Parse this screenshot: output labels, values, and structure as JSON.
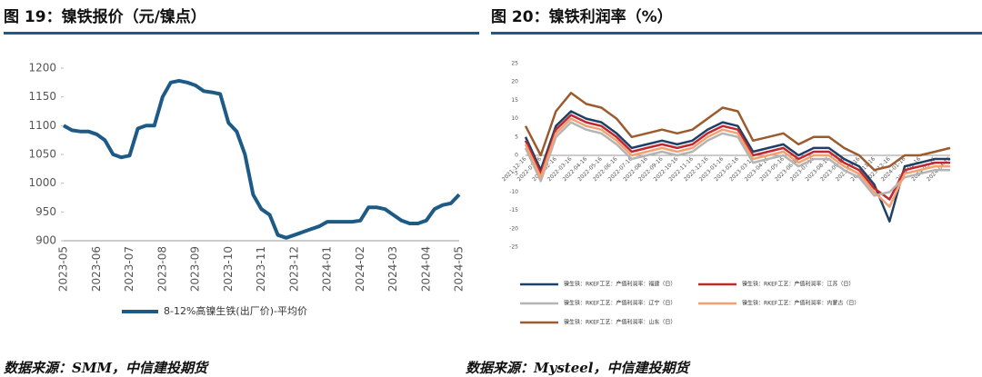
{
  "figures": [
    {
      "title": "图 19：镍铁报价（元/镍点）",
      "source": "数据来源：SMM，中信建投期货"
    },
    {
      "title": "图 20：镍铁利润率（%）",
      "source": "数据来源：Mysteel，中信建投期货"
    }
  ],
  "chart_data": [
    {
      "type": "line",
      "categories": [
        "2023-05",
        null,
        null,
        null,
        "2023-06",
        null,
        null,
        null,
        "2023-07",
        null,
        null,
        null,
        "2023-08",
        null,
        null,
        null,
        "2023-09",
        null,
        null,
        null,
        "2023-10",
        null,
        null,
        null,
        "2023-11",
        null,
        null,
        null,
        "2023-12",
        null,
        null,
        null,
        "2024-01",
        null,
        null,
        null,
        "2024-02",
        null,
        null,
        null,
        "2024-03",
        null,
        null,
        null,
        "2024-04",
        null,
        null,
        null,
        "2024-05"
      ],
      "series": [
        {
          "name": "8-12%高镍生铁(出厂价)-平均价",
          "color": "#1d5b86",
          "values": [
            1100,
            1092,
            1090,
            1090,
            1085,
            1075,
            1050,
            1045,
            1048,
            1095,
            1100,
            1100,
            1150,
            1175,
            1178,
            1175,
            1170,
            1160,
            1158,
            1155,
            1105,
            1090,
            1050,
            980,
            955,
            945,
            910,
            905,
            910,
            915,
            920,
            925,
            933,
            933,
            933,
            933,
            935,
            958,
            958,
            955,
            945,
            935,
            930,
            930,
            935,
            955,
            962,
            965,
            980
          ]
        }
      ],
      "ylim": [
        900,
        1200
      ],
      "yticks": [
        900,
        950,
        1000,
        1050,
        1100,
        1150,
        1200
      ],
      "legend": "bottom"
    },
    {
      "type": "line",
      "categories": [
        "2021-12-16",
        "2022-01-16",
        "2022-02-16",
        "2022-03-16",
        "2022-04-16",
        "2022-05-16",
        "2022-06-16",
        "2022-07-16",
        "2022-08-16",
        "2022-09-16",
        "2022-10-16",
        "2022-11-16",
        "2022-12-16",
        "2023-01-16",
        "2023-02-16",
        "2023-03-16",
        "2023-04-16",
        "2023-05-16",
        "2023-06-16",
        "2023-07-16",
        "2023-08-16",
        "2023-09-16",
        "2023-10-16",
        "2023-11-16",
        "2023-12-16",
        "2024-01-16",
        "2024-02-16",
        "2024-03-16",
        "2024-04-16"
      ],
      "series": [
        {
          "name": "镍生铁：RKEF工艺：产值利润率：福建（日）",
          "color": "#1f3f66",
          "values": [
            5,
            -4,
            8,
            12,
            10,
            9,
            6,
            2,
            3,
            4,
            3,
            4,
            7,
            9,
            8,
            1,
            2,
            3,
            0,
            2,
            2,
            -1,
            -3,
            -8,
            -18,
            -3,
            -2,
            -1,
            -1
          ]
        },
        {
          "name": "镍生铁：RKEF工艺：产值利润率：江苏（日）",
          "color": "#c0282f",
          "values": [
            4,
            -5,
            7,
            11,
            9,
            8,
            5,
            1,
            2,
            3,
            2,
            3,
            6,
            8,
            7,
            0,
            1,
            2,
            -1,
            1,
            1,
            -2,
            -4,
            -9,
            -12,
            -4,
            -3,
            -2,
            -2
          ]
        },
        {
          "name": "镍生铁：RKEF工艺：产值利润率：辽宁（日）",
          "color": "#b4b4b4",
          "values": [
            2,
            -7,
            5,
            9,
            7,
            6,
            3,
            -1,
            0,
            1,
            0,
            1,
            4,
            6,
            5,
            -2,
            -1,
            0,
            -3,
            -1,
            -1,
            -4,
            -6,
            -11,
            -10,
            -6,
            -5,
            -4,
            -4
          ]
        },
        {
          "name": "镍生铁：RKEF工艺：产值利润率：内蒙古（日）",
          "color": "#f4a070",
          "values": [
            3,
            -6,
            6,
            10,
            8,
            7,
            4,
            0,
            1,
            2,
            1,
            2,
            5,
            7,
            6,
            -1,
            0,
            1,
            -2,
            0,
            0,
            -3,
            -5,
            -10,
            -14,
            -5,
            -4,
            -3,
            -3
          ]
        },
        {
          "name": "镍生铁：RKEF工艺：产值利润率：山东（日）",
          "color": "#9c5b2e",
          "values": [
            8,
            0,
            12,
            17,
            14,
            13,
            10,
            5,
            6,
            7,
            6,
            7,
            10,
            13,
            12,
            4,
            5,
            6,
            3,
            5,
            5,
            2,
            0,
            -4,
            -3,
            0,
            0,
            1,
            2
          ]
        }
      ],
      "ylim": [
        -25,
        25
      ],
      "yticks": [
        -25,
        -20,
        -15,
        -10,
        -5,
        0,
        5,
        10,
        15,
        20,
        25
      ],
      "legend": "bottom"
    }
  ]
}
